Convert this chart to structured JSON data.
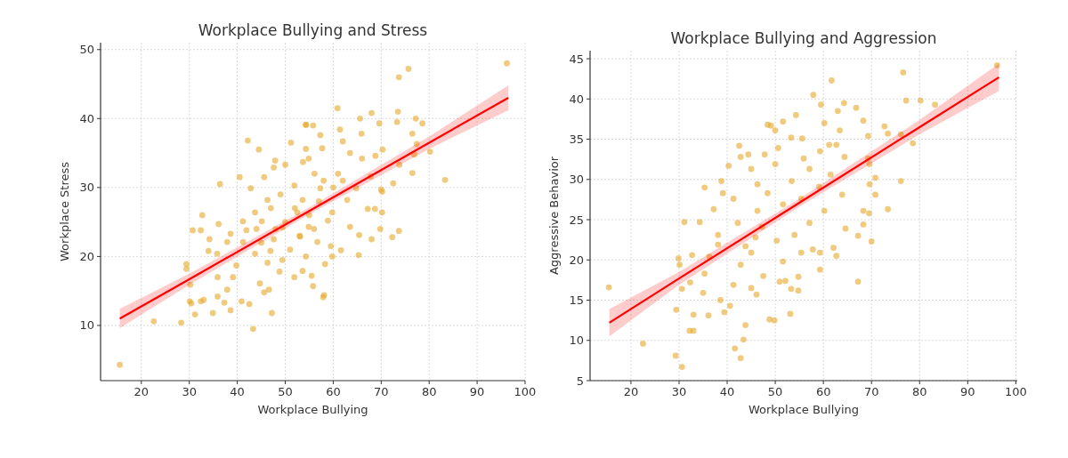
{
  "chart_data": [
    {
      "type": "scatter",
      "title": "Workplace Bullying and Stress",
      "xlabel": "Workplace Bullying",
      "ylabel": "Workplace Stress",
      "xlim": [
        11.5,
        100
      ],
      "ylim": [
        2,
        51
      ],
      "xticks": [
        20,
        30,
        40,
        50,
        60,
        70,
        80,
        90,
        100
      ],
      "yticks": [
        10,
        20,
        30,
        40,
        50
      ],
      "grid": true,
      "marker": "circle",
      "series": [
        {
          "color": "#e6a92a",
          "x": [
            15.5,
            22.6,
            28.3,
            29.4,
            29.4,
            30.2,
            30.1,
            30.4,
            31.2,
            30.7,
            32.4,
            33,
            32.7,
            32.4,
            34.9,
            34,
            34.2,
            36.1,
            36.4,
            35.8,
            35.9,
            35.9,
            37.3,
            38.6,
            37.9,
            39.1,
            39.8,
            38.6,
            40.5,
            42.2,
            44.5,
            43.3,
            42.5,
            40.9,
            41.2,
            41.9,
            42.8,
            43.7,
            44.7,
            45.6,
            46.3,
            46.9,
            47.2,
            46.6,
            47.6,
            47.9,
            45.6,
            46.3,
            43.7,
            48.8,
            49.4,
            50,
            51.2,
            51.9,
            52.5,
            51.9,
            53.7,
            54.3,
            54.3,
            53.1,
            49.4,
            47.6,
            45.1,
            41.2,
            37.9,
            96.2,
            75.7,
            73.7,
            60.9,
            68,
            73.5,
            65.6,
            69.6,
            73.3,
            77.2,
            78.6,
            61.4,
            65.9,
            76.5,
            57.3,
            54.3,
            55.8,
            62,
            57.7,
            63.5,
            77.4,
            80.2,
            76.9,
            70.3,
            68.8,
            73.8,
            76.5,
            83.3,
            72.5,
            70,
            70.2,
            67.2,
            70.2,
            68.7,
            73.7,
            72.3,
            69.8,
            68,
            65.4,
            65.3,
            63.5,
            61.6,
            59.5,
            59.8,
            58.3,
            55.5,
            55.8,
            58.1,
            57.9,
            53.6,
            54.3,
            54.9,
            56.7,
            59.8,
            62.9,
            57.3,
            61,
            66,
            64.8,
            67.8,
            58.9,
            53.6,
            56.1,
            54.9,
            50,
            52,
            55,
            48,
            45,
            57,
            60,
            53,
            47,
            44,
            51,
            58,
            62,
            56,
            49
          ],
          "values": [
            4.3,
            10.6,
            10.4,
            18.9,
            18.2,
            15.9,
            13.5,
            13.2,
            11.6,
            23.8,
            13.5,
            13.7,
            26,
            23.8,
            11.8,
            20.8,
            22.5,
            24.7,
            30.5,
            20.4,
            17,
            14.2,
            13.3,
            12.2,
            15.2,
            17,
            18.7,
            23.3,
            31.5,
            36.8,
            35.5,
            9.5,
            13.1,
            13.5,
            22.1,
            23.8,
            29.9,
            20.4,
            16.1,
            14.8,
            19.1,
            20.8,
            11.8,
            15.2,
            32.9,
            33.9,
            31.5,
            28.2,
            26.4,
            17.8,
            19.5,
            33.3,
            36.5,
            30.3,
            26.4,
            17,
            33.7,
            39.1,
            35.6,
            22.9,
            24.2,
            22.5,
            25.1,
            25.1,
            22.1,
            48,
            47.2,
            46,
            41.5,
            40.8,
            41,
            40,
            39.3,
            39.5,
            40,
            39.3,
            38.4,
            37.8,
            37.8,
            37.6,
            39.1,
            39,
            36.7,
            35.7,
            35,
            36.3,
            35.2,
            34.8,
            35.5,
            34.6,
            33.3,
            32.1,
            31.1,
            30.6,
            29.7,
            29.4,
            26.9,
            26.4,
            26.9,
            23.7,
            22.8,
            24,
            22.5,
            23.1,
            20.2,
            24.3,
            20.9,
            21.5,
            20,
            18.9,
            17.2,
            15.7,
            14.4,
            14.1,
            17.9,
            20,
            24.3,
            22.1,
            26.4,
            28.2,
            29.9,
            32,
            34.2,
            29.9,
            31.6,
            25.2,
            28.2,
            32,
            34.2,
            25,
            27,
            26,
            24,
            22,
            28,
            30,
            23,
            27,
            24,
            21,
            31,
            31,
            24,
            29
          ]
        },
        {
          "type": "line",
          "marker": "none",
          "color": "#ff0000",
          "x": [
            15.5,
            30,
            55,
            80,
            96.5
          ],
          "values": [
            11,
            16.7,
            26.6,
            36.5,
            43
          ],
          "lower": [
            9.6,
            15.9,
            26.1,
            35.6,
            41.2
          ],
          "upper": [
            12.4,
            17.5,
            27.1,
            37.4,
            44.8
          ]
        }
      ]
    },
    {
      "type": "scatter",
      "title": "Workplace Bullying and Aggression",
      "xlabel": "Workplace Bullying",
      "ylabel": "Aggressive Behavior",
      "xlim": [
        11.5,
        100.3
      ],
      "ylim": [
        5,
        46
      ],
      "xticks": [
        20,
        30,
        40,
        50,
        60,
        70,
        80,
        90,
        100
      ],
      "yticks": [
        5,
        10,
        15,
        20,
        25,
        30,
        35,
        40,
        45
      ],
      "grid": true,
      "marker": "circle",
      "series": [
        {
          "color": "#e6a92a",
          "x": [
            15.4,
            22.5,
            29.3,
            30.6,
            29.4,
            30.6,
            29.9,
            30.1,
            31.1,
            32.7,
            32.3,
            32.2,
            33,
            33,
            34.3,
            35.3,
            36.1,
            35,
            35.3,
            36.3,
            37.2,
            38.1,
            38.8,
            39.1,
            38.1,
            38.6,
            39.4,
            40.6,
            40.3,
            41.3,
            41.3,
            42.2,
            41.6,
            42.8,
            43.4,
            43.8,
            42.5,
            42.8,
            44.4,
            45,
            46.1,
            45,
            47.5,
            47.2,
            47.8,
            49.1,
            43.8,
            42.8,
            45,
            45.9,
            46.3,
            48.8,
            46.3,
            96.1,
            76.6,
            61.7,
            77.2,
            80.2,
            83.2,
            57.9,
            59.5,
            64.3,
            66.8,
            68.3,
            63,
            54.3,
            50,
            51.6,
            48.4,
            53.3,
            55.6,
            60.2,
            69.3,
            72.7,
            73.4,
            76.1,
            78.6,
            63.4,
            61.2,
            62.7,
            59.3,
            55.9,
            50.6,
            69.3,
            69.6,
            64.4,
            76.1,
            69.6,
            70.8,
            70.8,
            73.4,
            68.3,
            69.5,
            68.3,
            67.2,
            70,
            64.6,
            62.1,
            62.7,
            59.3,
            59.3,
            57.8,
            67.2,
            54.8,
            53.3,
            53.1,
            49.8,
            50.9,
            52.1,
            54.8,
            51.6,
            55.4,
            50.3,
            54,
            57.1,
            60.2,
            63.9,
            51.6,
            55.4,
            59.1,
            61.5,
            53.4,
            48.4,
            57.1,
            50
          ],
          "values": [
            16.6,
            9.6,
            8.1,
            6.7,
            13.8,
            16.4,
            20.2,
            19.4,
            24.7,
            20.6,
            17.2,
            11.2,
            11.2,
            13.2,
            24.7,
            29,
            13.1,
            15.9,
            18.3,
            20.4,
            26.3,
            23.1,
            29.8,
            28.3,
            21.9,
            15,
            13.5,
            14.3,
            31.7,
            16.9,
            27.6,
            24.6,
            9,
            7.8,
            10.1,
            11.9,
            34.2,
            32.8,
            33.1,
            31.3,
            15.7,
            16.5,
            18,
            24.1,
            33.1,
            36.7,
            21.7,
            19.4,
            20.9,
            22.8,
            26.1,
            12.6,
            29.4,
            44.2,
            43.3,
            42.3,
            39.8,
            39.8,
            39.3,
            40.5,
            39.3,
            39.5,
            38.9,
            37.3,
            38.5,
            38,
            36.1,
            37.2,
            36.8,
            35.2,
            35.1,
            37,
            35.4,
            36.6,
            35.7,
            35.6,
            34.5,
            36.1,
            34.3,
            34.3,
            33.5,
            32.6,
            33.9,
            32.6,
            31.9,
            32.8,
            29.8,
            29.4,
            30.2,
            28.1,
            26.3,
            26.1,
            25.8,
            24.4,
            23,
            22.3,
            23.9,
            21.5,
            20.5,
            20.9,
            18.8,
            21.3,
            17.3,
            16.2,
            16.4,
            13.3,
            12.5,
            17.3,
            17.4,
            17.9,
            19.8,
            20.9,
            22.4,
            23.1,
            24.6,
            26.1,
            28.1,
            26.9,
            27.6,
            29.1,
            30.6,
            29.8,
            28.3,
            31.3,
            31.9
          ]
        },
        {
          "type": "line",
          "marker": "none",
          "color": "#ff0000",
          "x": [
            15.5,
            30,
            55,
            80,
            96.5
          ],
          "values": [
            12.2,
            17.7,
            27.1,
            36.5,
            42.7
          ],
          "lower": [
            10.5,
            16.9,
            26.6,
            35.6,
            41
          ],
          "upper": [
            13.9,
            18.5,
            27.6,
            37.4,
            44.4
          ]
        }
      ]
    }
  ]
}
